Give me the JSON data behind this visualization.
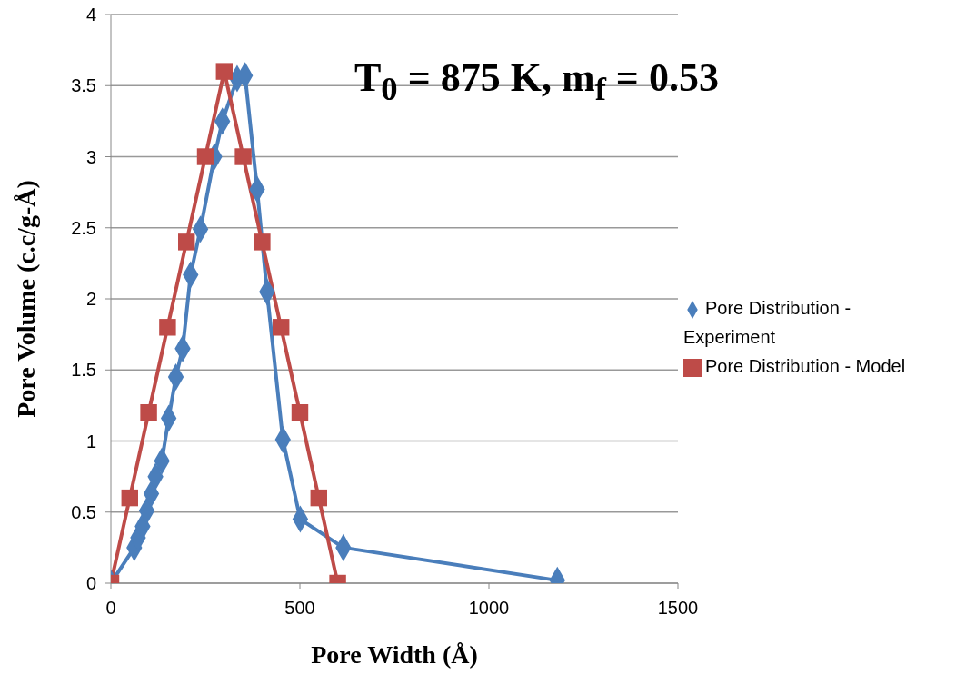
{
  "chart_data": {
    "type": "line",
    "title": "T$_{0}$ = 875 K, m$_{f}$ = 0.53",
    "xlabel": "Pore Width (Å)",
    "ylabel": "Pore Volume (c.c/g-Å)",
    "xlim": [
      0,
      1500
    ],
    "xticks": [
      0,
      500,
      1000,
      1500
    ],
    "ylim": [
      0,
      4
    ],
    "yticks": [
      0,
      0.5,
      1,
      1.5,
      2,
      2.5,
      3,
      3.5,
      4
    ],
    "grid": "y",
    "legend": "right",
    "series": [
      {
        "name": "Pore Distribution - Experiment",
        "color": "#4a7ebb",
        "marker": "diamond",
        "x": [
          0,
          62,
          72,
          84,
          95,
          107,
          118,
          135,
          153,
          172,
          190,
          211,
          237,
          274,
          295,
          334,
          355,
          387,
          413,
          455,
          501,
          615,
          1181
        ],
        "values": [
          0,
          0.25,
          0.32,
          0.4,
          0.51,
          0.63,
          0.75,
          0.86,
          1.16,
          1.45,
          1.65,
          2.17,
          2.49,
          3.0,
          3.25,
          3.55,
          3.57,
          2.77,
          2.05,
          1.01,
          0.45,
          0.25,
          0.02
        ]
      },
      {
        "name": "Pore Distribution - Model",
        "color": "#be4b48",
        "marker": "square",
        "x": [
          0,
          50,
          100,
          150,
          200,
          250,
          300,
          350,
          400,
          450,
          500,
          550,
          600
        ],
        "values": [
          0,
          0.6,
          1.2,
          1.8,
          2.4,
          3,
          3.6,
          3,
          2.4,
          1.8,
          1.2,
          0.6,
          0
        ]
      }
    ]
  }
}
